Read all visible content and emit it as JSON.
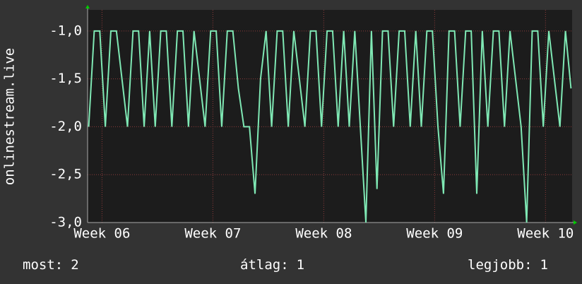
{
  "chart_data": {
    "type": "line",
    "ylabel": "onlinestream.live",
    "x": [
      5.88,
      5.93,
      5.98,
      6.03,
      6.08,
      6.13,
      6.18,
      6.23,
      6.28,
      6.33,
      6.38,
      6.43,
      6.48,
      6.53,
      6.58,
      6.63,
      6.68,
      6.73,
      6.78,
      6.83,
      6.88,
      6.93,
      6.98,
      7.03,
      7.08,
      7.13,
      7.18,
      7.23,
      7.28,
      7.33,
      7.38,
      7.43,
      7.48,
      7.53,
      7.58,
      7.63,
      7.68,
      7.73,
      7.78,
      7.83,
      7.88,
      7.93,
      7.98,
      8.03,
      8.08,
      8.13,
      8.18,
      8.23,
      8.28,
      8.33,
      8.38,
      8.43,
      8.48,
      8.53,
      8.58,
      8.63,
      8.68,
      8.73,
      8.78,
      8.83,
      8.88,
      8.93,
      8.98,
      9.03,
      9.08,
      9.13,
      9.18,
      9.23,
      9.28,
      9.33,
      9.38,
      9.43,
      9.48,
      9.53,
      9.58,
      9.63,
      9.68,
      9.73,
      9.78,
      9.83,
      9.88,
      9.93,
      9.98,
      10.03,
      10.08,
      10.13,
      10.18,
      10.23
    ],
    "series": [
      {
        "name": "onlinestream.live",
        "color": "#7fe8b4",
        "values": [
          -2,
          -1,
          -1,
          -2,
          -1,
          -1,
          -1.5,
          -2,
          -1,
          -1,
          -2,
          -1,
          -2,
          -1,
          -1,
          -2,
          -1,
          -1,
          -2,
          -1,
          -1.5,
          -2,
          -1,
          -1,
          -2,
          -1,
          -1,
          -1.6,
          -2,
          -2,
          -2.7,
          -1.5,
          -1,
          -2,
          -1,
          -1,
          -2,
          -1,
          -1.5,
          -2,
          -1,
          -1,
          -2,
          -1,
          -1,
          -2,
          -1,
          -2,
          -1,
          -2,
          -3.0,
          -1,
          -2.65,
          -1,
          -1,
          -2,
          -1,
          -1,
          -2,
          -1,
          -2,
          -1,
          -1,
          -2,
          -2.7,
          -1,
          -1,
          -2,
          -1,
          -1,
          -2.7,
          -1,
          -2,
          -1,
          -1,
          -2,
          -1,
          -1.5,
          -2,
          -3.0,
          -1,
          -1,
          -2,
          -1,
          -1.5,
          -2,
          -1,
          -1.6
        ]
      }
    ],
    "xlim": [
      5.87,
      10.24
    ],
    "xticks": [
      {
        "value": 6,
        "label": "Week 06"
      },
      {
        "value": 7,
        "label": "Week 07"
      },
      {
        "value": 8,
        "label": "Week 08"
      },
      {
        "value": 9,
        "label": "Week 09"
      },
      {
        "value": 10,
        "label": "Week 10"
      }
    ],
    "ylim": [
      -3.0,
      -0.78
    ],
    "yticks": [
      {
        "value": -3.0,
        "label": "-3,0"
      },
      {
        "value": -2.5,
        "label": "-2,5"
      },
      {
        "value": -2.0,
        "label": "-2,0"
      },
      {
        "value": -1.5,
        "label": "-1,5"
      },
      {
        "value": -1.0,
        "label": "-1,0"
      }
    ],
    "grid": true,
    "footer": [
      {
        "label": "most:",
        "value": 2
      },
      {
        "label": "átlag:",
        "value": 1
      },
      {
        "label": "legjobb:",
        "value": 1
      }
    ]
  }
}
